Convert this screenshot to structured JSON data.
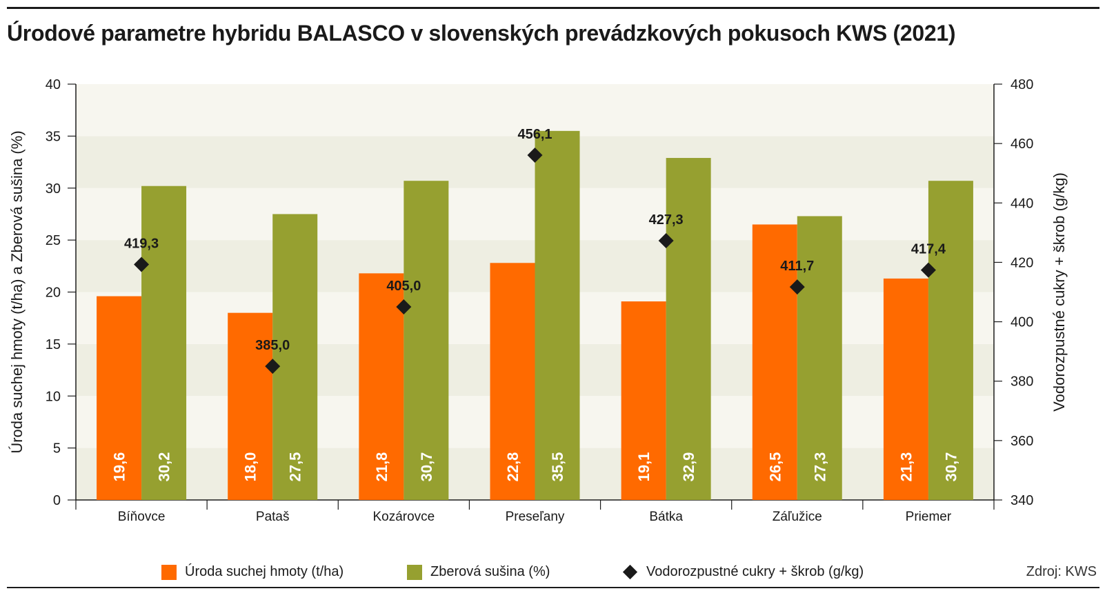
{
  "title": "Úrodové parametre hybridu BALASCO v slovenských prevádzkových pokusoch KWS (2021)",
  "source": "Zdroj: KWS",
  "colors": {
    "orange": "#ff6a00",
    "olive": "#96a030",
    "diamond": "#1a1a1a",
    "band_light": "#f7f6ef",
    "band_dark": "#eeeee2"
  },
  "chart_data": {
    "type": "bar",
    "categories": [
      "Bíňovce",
      "Pataš",
      "Kozárovce",
      "Preseľany",
      "Bátka",
      "Záľužice",
      "Priemer"
    ],
    "series": [
      {
        "name": "Úroda suchej hmoty (t/ha)",
        "type": "bar",
        "axis": "left",
        "color": "#ff6a00",
        "values": [
          19.6,
          18.0,
          21.8,
          22.8,
          19.1,
          26.5,
          21.3
        ],
        "labels": [
          "19,6",
          "18,0",
          "21,8",
          "22,8",
          "19,1",
          "26,5",
          "21,3"
        ]
      },
      {
        "name": "Zberová sušina (%)",
        "type": "bar",
        "axis": "left",
        "color": "#96a030",
        "values": [
          30.2,
          27.5,
          30.7,
          35.5,
          32.9,
          27.3,
          30.7
        ],
        "labels": [
          "30,2",
          "27,5",
          "30,7",
          "35,5",
          "32,9",
          "27,3",
          "30,7"
        ]
      },
      {
        "name": "Vodorozpustné cukry + škrob (g/kg)",
        "type": "scatter",
        "marker": "diamond",
        "axis": "right",
        "color": "#1a1a1a",
        "values": [
          419.3,
          385.0,
          405.0,
          456.1,
          427.3,
          411.7,
          417.4
        ],
        "labels": [
          "419,3",
          "385,0",
          "405,0",
          "456,1",
          "427,3",
          "411,7",
          "417,4"
        ]
      }
    ],
    "ylabel": "Úroda suchej hmoty (t/ha) a Zberová sušina (%)",
    "ylim": [
      0,
      40
    ],
    "yticks": [
      "0",
      "5",
      "10",
      "15",
      "20",
      "25",
      "30",
      "35",
      "40"
    ],
    "y2label": "Vodorozpustné cukry + škrob (g/kg)",
    "y2lim": [
      340,
      480
    ],
    "y2ticks": [
      "340",
      "360",
      "380",
      "400",
      "420",
      "440",
      "460",
      "480"
    ],
    "legend_position": "bottom",
    "grid": "alternating horizontal bands"
  }
}
